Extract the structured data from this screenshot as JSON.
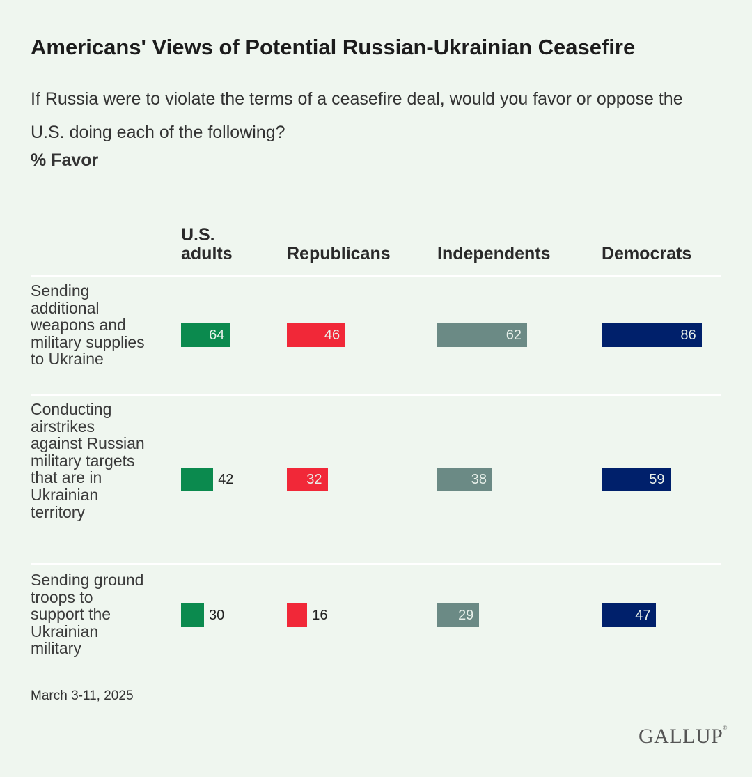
{
  "chart_data": {
    "type": "bar",
    "title": "Americans' Views of Potential Russian-Ukrainian Ceasefire",
    "subtitle": "If Russia were to violate the terms of a ceasefire deal, would you favor or oppose the U.S. doing each of the following?",
    "unit_label": "% Favor",
    "columns": [
      "U.S. adults",
      "Republicans",
      "Independents",
      "Democrats"
    ],
    "categories": [
      "Sending additional weapons and military supplies to Ukraine",
      "Conducting airstrikes against Russian military targets that are in Ukrainian territory",
      "Sending ground troops to support the Ukrainian military"
    ],
    "series": [
      {
        "name": "U.S. adults",
        "color": "#0b8a4e",
        "values": [
          64,
          42,
          30
        ]
      },
      {
        "name": "Republicans",
        "color": "#f12838",
        "values": [
          46,
          32,
          16
        ]
      },
      {
        "name": "Independents",
        "color": "#6b8a85",
        "values": [
          62,
          38,
          29
        ]
      },
      {
        "name": "Democrats",
        "color": "#00206b",
        "values": [
          86,
          59,
          47
        ]
      }
    ],
    "note": "March 3-11, 2025",
    "source_logo": "GALLUP"
  }
}
